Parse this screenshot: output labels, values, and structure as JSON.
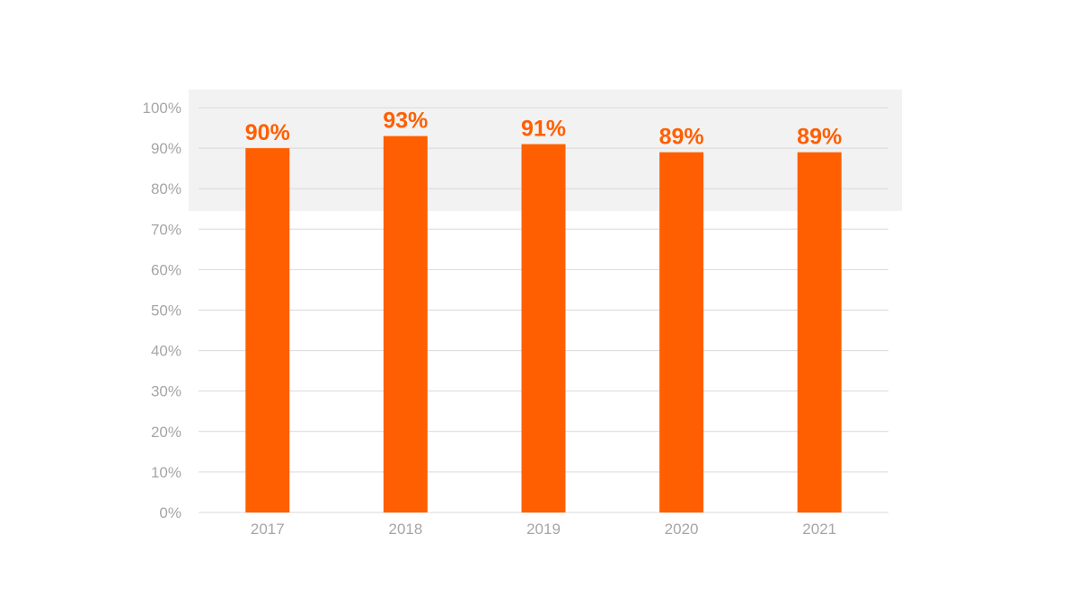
{
  "chart_data": {
    "type": "bar",
    "categories": [
      "2017",
      "2018",
      "2019",
      "2020",
      "2021"
    ],
    "values": [
      90,
      93,
      91,
      89,
      89
    ],
    "data_labels": [
      "90%",
      "93%",
      "91%",
      "89%",
      "89%"
    ],
    "y_tick_labels": [
      "0%",
      "10%",
      "20%",
      "30%",
      "40%",
      "50%",
      "60%",
      "70%",
      "80%",
      "90%",
      "100%"
    ],
    "ylim": [
      0,
      100
    ],
    "y_tick_step": 10,
    "highlight_band": [
      74.5,
      104.5
    ],
    "grid": true,
    "legend": "none",
    "colors": {
      "bar": "#ff5f00",
      "label": "#ff5f00",
      "grid": "#d9d9d9",
      "tick_text": "#a6a6a6",
      "band": "#f2f2f2"
    }
  }
}
